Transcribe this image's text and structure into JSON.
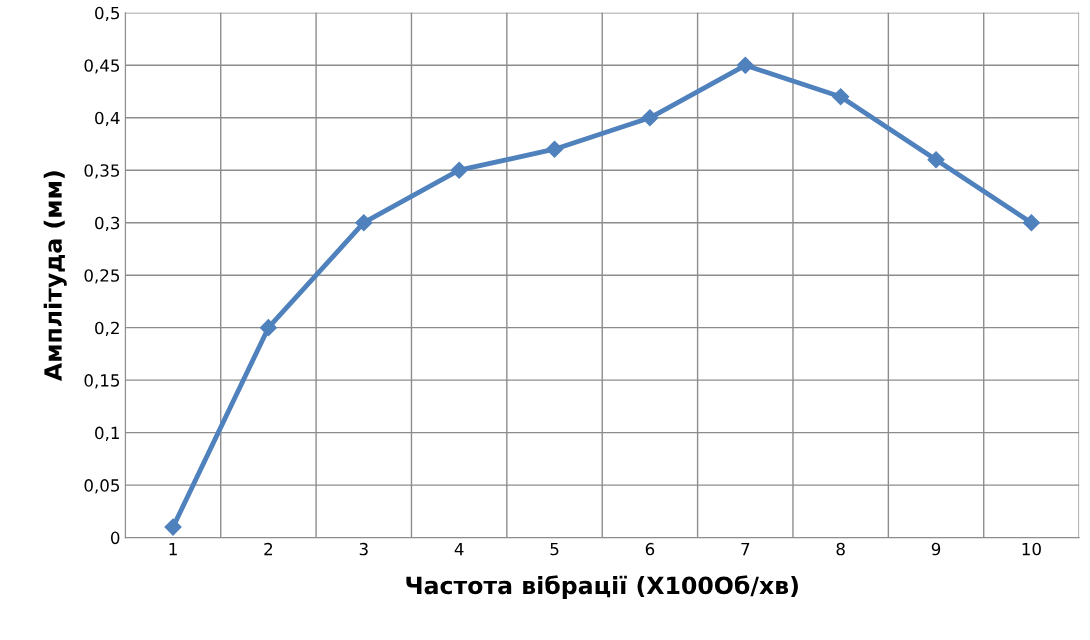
{
  "chart_data": {
    "type": "line",
    "xlabel": "Частота вібрації (X100Об/хв)",
    "ylabel": "Амплітуда (мм)",
    "categories": [
      "1",
      "2",
      "3",
      "4",
      "5",
      "6",
      "7",
      "8",
      "9",
      "10"
    ],
    "series": [
      {
        "color": "#4f81bd",
        "values": [
          0.01,
          0.2,
          0.3,
          0.35,
          0.37,
          0.4,
          0.45,
          0.42,
          0.36,
          0.3
        ]
      }
    ],
    "ylim": [
      0,
      0.5
    ],
    "yticks": [
      0,
      {
        "value": 0.05,
        "label": "0,05"
      },
      {
        "value": 0.1,
        "label": "0,1"
      },
      {
        "value": 0.15,
        "label": "0,15"
      },
      {
        "value": 0.2,
        "label": "0,2"
      },
      {
        "value": 0.25,
        "label": "0,25"
      },
      {
        "value": 0.3,
        "label": "0,3"
      },
      {
        "value": 0.35,
        "label": "0,35"
      },
      {
        "value": 0.4,
        "label": "0,4"
      },
      {
        "value": 0.45,
        "label": "0,45"
      },
      {
        "value": 0.5,
        "label": "0,5"
      }
    ],
    "grid": true,
    "marker": "diamond",
    "line_style": "solid"
  }
}
